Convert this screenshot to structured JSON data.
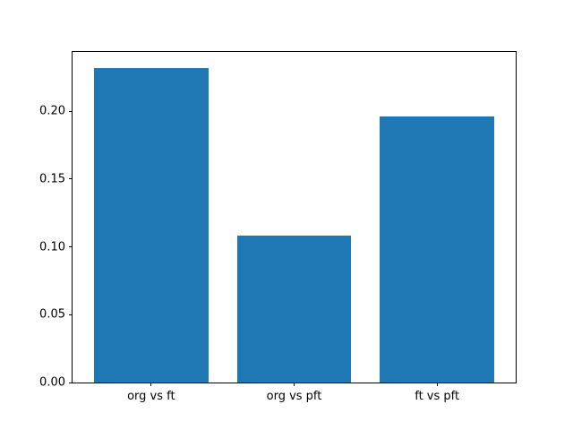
{
  "chart_data": {
    "type": "bar",
    "title": "",
    "xlabel": "",
    "ylabel": "",
    "categories": [
      "org vs ft",
      "org vs pft",
      "ft vs pft"
    ],
    "values": [
      0.232,
      0.108,
      0.196
    ],
    "bar_color": "#1f77b4",
    "bar_width_data_units": 0.8,
    "xlim": [
      -0.55,
      2.55
    ],
    "ylim": [
      0,
      0.2436
    ],
    "yticks": [
      0.0,
      0.05,
      0.1,
      0.15,
      0.2
    ],
    "ytick_labels": [
      "0.00",
      "0.05",
      "0.10",
      "0.15",
      "0.20"
    ],
    "grid": false,
    "legend": null,
    "spine_color": "#000000",
    "background_color": "#ffffff"
  }
}
